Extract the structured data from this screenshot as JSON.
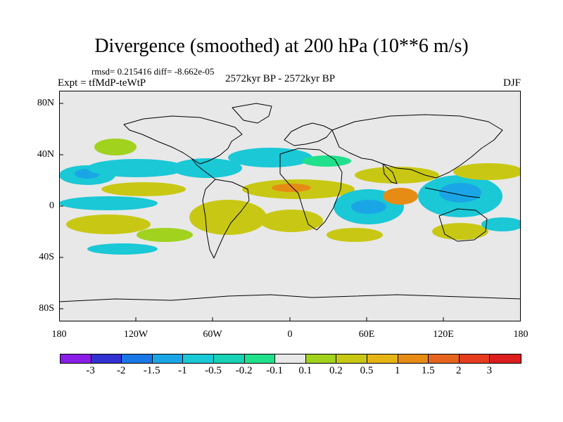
{
  "header": {
    "title": "Divergence (smoothed) at 200 hPa (10**6 m/s)",
    "stats": "rmsd= 0.215416  diff= -8.662e-05",
    "experiment": "Expt = tfMdP-teWtP",
    "period": "2572kyr BP - 2572kyr BP",
    "season": "DJF"
  },
  "axes": {
    "y_labels": [
      "80N",
      "40N",
      "0",
      "40S",
      "80S"
    ],
    "x_labels": [
      "180",
      "120W",
      "60W",
      "0",
      "60E",
      "120E",
      "180"
    ]
  },
  "legend": {
    "labels": [
      "-3",
      "-2",
      "-1.5",
      "-1",
      "-0.5",
      "-0.2",
      "-0.1",
      "0.1",
      "0.2",
      "0.5",
      "1",
      "1.5",
      "2",
      "3"
    ],
    "colors": [
      "#8a1ee6",
      "#3232d2",
      "#1a78e6",
      "#1aa6e6",
      "#1ac8d6",
      "#17d2b4",
      "#20e08c",
      "#e8e8e8",
      "#a0d21e",
      "#c8c814",
      "#e6b414",
      "#e68c14",
      "#e6641e",
      "#e63c1e",
      "#dc1e1e"
    ]
  },
  "map_colors": {
    "background": "#e8e8e8",
    "light_blue": "#1ac8d6",
    "blue": "#1aa6e6",
    "green": "#20e08c",
    "yellow_green": "#a0d21e",
    "olive": "#c8c814",
    "orange": "#e68c14",
    "coast": "#000000"
  }
}
